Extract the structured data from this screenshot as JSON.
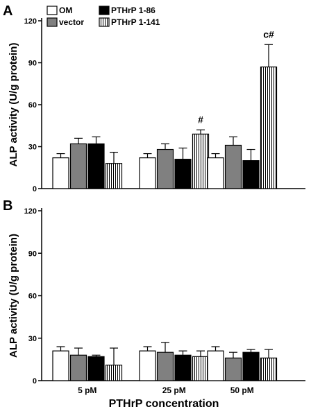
{
  "figure": {
    "xlabel": "PTHrP concentration"
  },
  "chart_data": [
    {
      "type": "bar",
      "panel": "A",
      "ylabel": "ALP activity (U/g protein)",
      "ylim": [
        0,
        120
      ],
      "yticks": [
        0,
        30,
        60,
        90,
        120
      ],
      "categories": [
        "5 pM",
        "25 pM",
        "50 pM"
      ],
      "legend": "top-left",
      "series": [
        {
          "name": "OM",
          "fill": "#ffffff",
          "pattern": "none",
          "values": [
            22,
            22,
            22
          ],
          "errors": [
            3,
            3,
            3
          ]
        },
        {
          "name": "vector",
          "fill": "#808080",
          "pattern": "none",
          "values": [
            32,
            28,
            31
          ],
          "errors": [
            4,
            4,
            6
          ]
        },
        {
          "name": "PTHrP 1-86",
          "fill": "#000000",
          "pattern": "none",
          "values": [
            32,
            21,
            20
          ],
          "errors": [
            5,
            8,
            8
          ]
        },
        {
          "name": "PTHrP 1-141",
          "fill": "#ffffff",
          "pattern": "vertical-lines",
          "values": [
            18,
            39,
            87
          ],
          "errors": [
            8,
            3,
            16
          ]
        }
      ],
      "annotations": [
        {
          "text": "#",
          "category": "25 pM",
          "series": "PTHrP 1-141"
        },
        {
          "text": "c#",
          "category": "50 pM",
          "series": "PTHrP 1-141"
        }
      ]
    },
    {
      "type": "bar",
      "panel": "B",
      "ylabel": "ALP activity (U/g protein)",
      "ylim": [
        0,
        120
      ],
      "yticks": [
        0,
        30,
        60,
        90,
        120
      ],
      "categories": [
        "5 pM",
        "25 pM",
        "50 pM"
      ],
      "series": [
        {
          "name": "OM",
          "fill": "#ffffff",
          "pattern": "none",
          "values": [
            21,
            21,
            21
          ],
          "errors": [
            3,
            3,
            3
          ]
        },
        {
          "name": "vector",
          "fill": "#808080",
          "pattern": "none",
          "values": [
            18,
            20,
            16
          ],
          "errors": [
            5,
            7,
            4
          ]
        },
        {
          "name": "PTHrP 1-86",
          "fill": "#000000",
          "pattern": "none",
          "values": [
            17,
            18,
            20
          ],
          "errors": [
            1,
            3,
            2
          ]
        },
        {
          "name": "PTHrP 1-141",
          "fill": "#ffffff",
          "pattern": "vertical-lines",
          "values": [
            11,
            17,
            16
          ],
          "errors": [
            12,
            4,
            6
          ]
        }
      ],
      "annotations": []
    }
  ]
}
